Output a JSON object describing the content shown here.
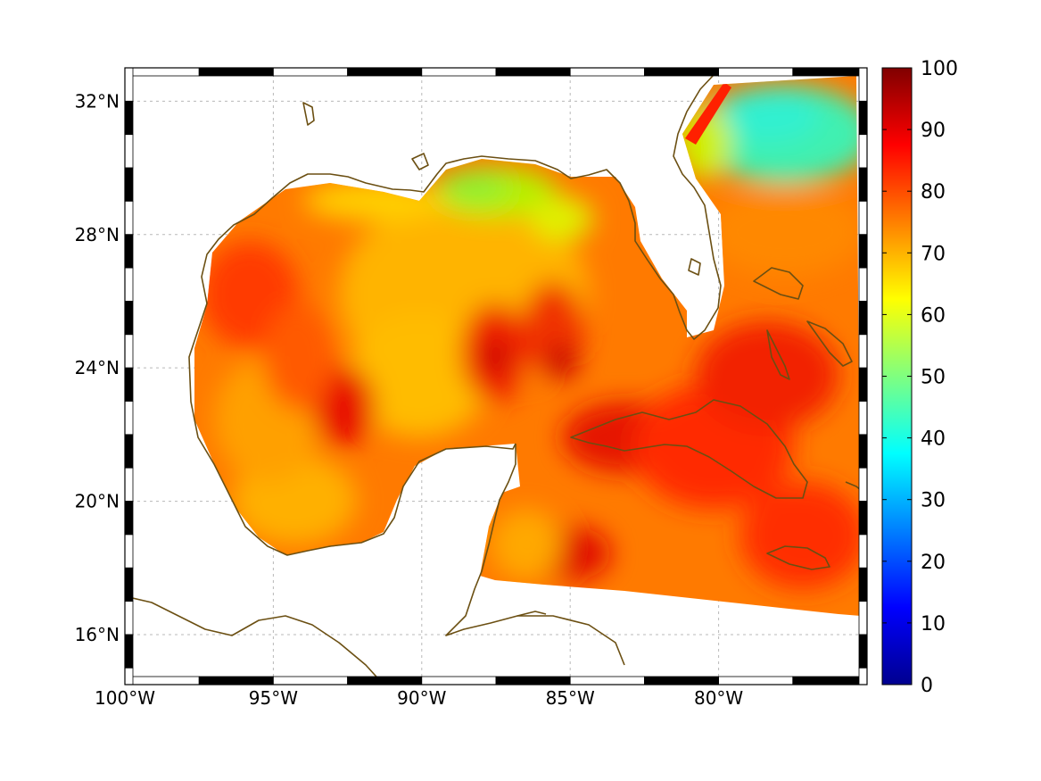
{
  "map": {
    "lon_range": [
      -100,
      -75
    ],
    "lat_range": [
      14.5,
      33
    ],
    "lon_ticks": [
      {
        "value": -100,
        "label": "100°W"
      },
      {
        "value": -95,
        "label": "95°W"
      },
      {
        "value": -90,
        "label": "90°W"
      },
      {
        "value": -85,
        "label": "85°W"
      },
      {
        "value": -80,
        "label": "80°W"
      }
    ],
    "lat_ticks": [
      {
        "value": 16,
        "label": "16°N"
      },
      {
        "value": 20,
        "label": "20°N"
      },
      {
        "value": 24,
        "label": "24°N"
      },
      {
        "value": 28,
        "label": "28°N"
      },
      {
        "value": 32,
        "label": "32°N"
      }
    ],
    "grid": true,
    "coastline_color": "#6b4f12",
    "colormap": "jet"
  },
  "colorbar": {
    "range": [
      0,
      100
    ],
    "ticks": [
      {
        "value": 0,
        "label": "0"
      },
      {
        "value": 10,
        "label": "10"
      },
      {
        "value": 20,
        "label": "20"
      },
      {
        "value": 30,
        "label": "30"
      },
      {
        "value": 40,
        "label": "40"
      },
      {
        "value": 50,
        "label": "50"
      },
      {
        "value": 60,
        "label": "60"
      },
      {
        "value": 70,
        "label": "70"
      },
      {
        "value": 80,
        "label": "80"
      },
      {
        "value": 90,
        "label": "90"
      },
      {
        "value": 100,
        "label": "100"
      }
    ]
  }
}
